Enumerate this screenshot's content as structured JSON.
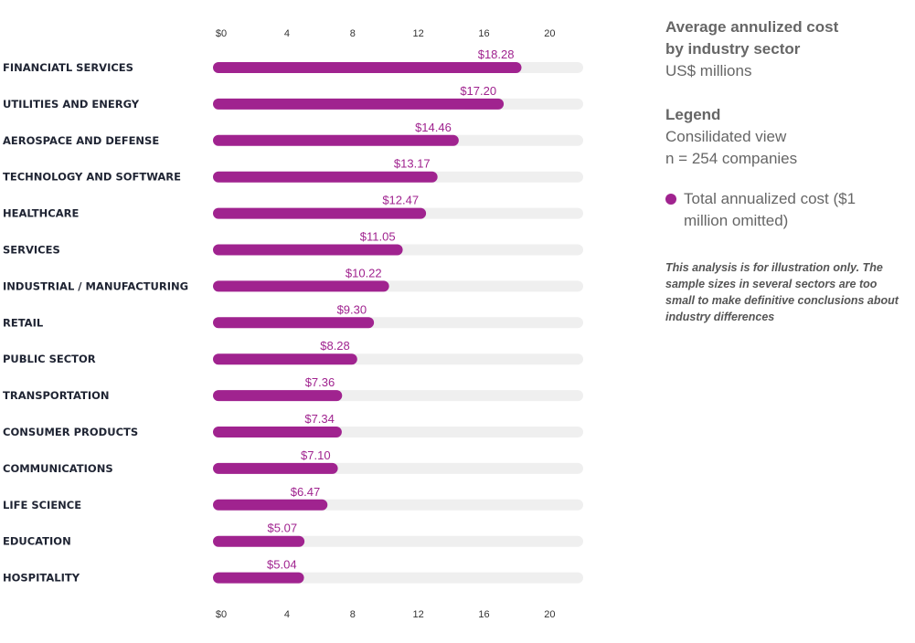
{
  "chart_data": {
    "type": "bar",
    "orientation": "horizontal",
    "categories": [
      "FINANCIATL SERVICES",
      "UTILITIES AND ENERGY",
      "AEROSPACE AND DEFENSE",
      "TECHNOLOGY AND SOFTWARE",
      "HEALTHCARE",
      "SERVICES",
      "INDUSTRIAL / MANUFACTURING",
      "RETAIL",
      "PUBLIC SECTOR",
      "TRANSPORTATION",
      "CONSUMER PRODUCTS",
      "COMMUNICATIONS",
      "LIFE SCIENCE",
      "EDUCATION",
      "HOSPITALITY"
    ],
    "values": [
      18.28,
      17.2,
      14.46,
      13.17,
      12.47,
      11.05,
      10.22,
      9.3,
      8.28,
      7.36,
      7.34,
      7.1,
      6.47,
      5.07,
      5.04
    ],
    "value_labels": [
      "$18.28",
      "$17.20",
      "$14.46",
      "$13.17",
      "$12.47",
      "$11.05",
      "$10.22",
      "$9.30",
      "$8.28",
      "$7.36",
      "$7.34",
      "$7.10",
      "$6.47",
      "$5.07",
      "$5.04"
    ],
    "xlim": [
      0,
      22
    ],
    "x_ticks": [
      0,
      4,
      8,
      12,
      16,
      20
    ],
    "x_tick_labels": [
      "$0",
      "4",
      "8",
      "12",
      "16",
      "20"
    ],
    "axis_position": "top and bottom",
    "grid": false,
    "bar_color": "#a0238f",
    "track_color": "#efefef"
  },
  "sidebar": {
    "title": "Average annulized cost by industry sector",
    "subtitle": "US$ millions",
    "legend_heading": "Legend",
    "legend_line1": "Consilidated view",
    "legend_line2": "n = 254 companies",
    "legend_item": "Total annualized cost ($1 million omitted)",
    "note": "This analysis is for illustration only. The sample sizes in several sectors are too small to make definitive conclusions about industry differences"
  },
  "colors": {
    "accent": "#a0238f",
    "text_gray": "#666666"
  }
}
